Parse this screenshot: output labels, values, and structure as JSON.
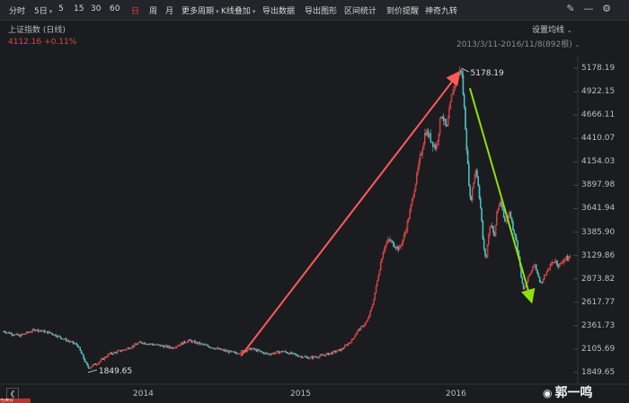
{
  "toolbar": {
    "items": [
      {
        "label": "分时",
        "active": false
      },
      {
        "label": "5日",
        "active": false,
        "dropdown": true
      },
      {
        "label": "5",
        "active": false
      },
      {
        "label": "15",
        "active": false
      },
      {
        "label": "30",
        "active": false
      },
      {
        "label": "60",
        "active": false
      },
      {
        "label": "日",
        "active": true
      },
      {
        "label": "周",
        "active": false
      },
      {
        "label": "月",
        "active": false
      },
      {
        "label": "更多周期",
        "active": false,
        "dropdown": true
      },
      {
        "label": "K线叠加",
        "active": false,
        "dropdown": true
      },
      {
        "label": "导出数据",
        "active": false
      },
      {
        "label": "导出图形",
        "active": false
      },
      {
        "label": "区间统计",
        "active": false
      },
      {
        "label": "到价提醒",
        "active": false
      },
      {
        "label": "神奇九转",
        "active": false
      }
    ],
    "icons": [
      "pen-icon",
      "minus-icon",
      "gear-icon"
    ]
  },
  "chart": {
    "title": "上证指数 (日线)",
    "last_price": "4112.16",
    "change_pct": "+0.11%",
    "ma_setting": "设置均线",
    "range": "2013/3/11-2016/11/8(892根)",
    "y_ticks": [
      "5178.19",
      "4922.15",
      "4666.11",
      "4410.07",
      "4154.03",
      "3897.98",
      "3641.94",
      "3385.90",
      "3129.86",
      "2873.82",
      "2617.77",
      "2361.73",
      "2105.69",
      "1849.65"
    ],
    "x_ticks": [
      "2014",
      "2015",
      "2016"
    ],
    "high_label": "5178.19",
    "low_label": "1849.65"
  },
  "chart_data": {
    "type": "candlestick",
    "x_range": [
      "2013-03-11",
      "2016-11-08"
    ],
    "ylim": [
      1849.65,
      5178.19
    ],
    "series": [
      {
        "values": [
          [
            0,
            2300
          ],
          [
            3,
            2250
          ],
          [
            6,
            2320
          ],
          [
            9,
            2280
          ],
          [
            12,
            2200
          ],
          [
            14,
            2150
          ],
          [
            16,
            1900
          ],
          [
            18,
            1960
          ],
          [
            20,
            2050
          ],
          [
            23,
            2100
          ],
          [
            26,
            2180
          ],
          [
            29,
            2150
          ],
          [
            32,
            2120
          ],
          [
            35,
            2200
          ],
          [
            38,
            2150
          ],
          [
            41,
            2100
          ],
          [
            44,
            2060
          ],
          [
            47,
            2110
          ],
          [
            50,
            2050
          ],
          [
            53,
            2080
          ],
          [
            56,
            2030
          ],
          [
            58,
            2010
          ],
          [
            60,
            2030
          ],
          [
            62,
            2060
          ],
          [
            64,
            2100
          ],
          [
            66,
            2200
          ],
          [
            67,
            2300
          ],
          [
            68,
            2350
          ],
          [
            69,
            2420
          ],
          [
            70,
            2600
          ],
          [
            71,
            2900
          ],
          [
            72,
            3200
          ],
          [
            73,
            3300
          ],
          [
            74,
            3250
          ],
          [
            75,
            3200
          ],
          [
            76,
            3350
          ],
          [
            77,
            3600
          ],
          [
            78,
            3900
          ],
          [
            79,
            4200
          ],
          [
            80,
            4500
          ],
          [
            81,
            4400
          ],
          [
            82,
            4300
          ],
          [
            83,
            4700
          ],
          [
            84,
            4500
          ],
          [
            85,
            4900
          ],
          [
            86,
            5100
          ],
          [
            86.8,
            5178
          ],
          [
            87,
            5000
          ],
          [
            87.5,
            4600
          ],
          [
            88,
            4100
          ],
          [
            88.5,
            3700
          ],
          [
            89,
            3900
          ],
          [
            89.5,
            4100
          ],
          [
            90,
            3900
          ],
          [
            90.5,
            3600
          ],
          [
            91,
            3200
          ],
          [
            91.5,
            3100
          ],
          [
            92,
            3400
          ],
          [
            92.5,
            3500
          ],
          [
            93,
            3300
          ],
          [
            93.5,
            3600
          ],
          [
            94,
            3700
          ],
          [
            94.5,
            3650
          ],
          [
            95,
            3500
          ],
          [
            95.5,
            3550
          ],
          [
            96,
            3600
          ],
          [
            96.5,
            3450
          ],
          [
            97,
            3350
          ],
          [
            97.5,
            3200
          ],
          [
            98,
            2950
          ],
          [
            98.5,
            2750
          ],
          [
            99,
            2800
          ],
          [
            99.5,
            2900
          ],
          [
            100,
            2950
          ],
          [
            100.5,
            3050
          ],
          [
            101,
            2980
          ],
          [
            101.5,
            2870
          ],
          [
            102,
            2820
          ],
          [
            102.5,
            2900
          ],
          [
            103,
            2950
          ],
          [
            103.5,
            3000
          ],
          [
            104,
            3050
          ],
          [
            104.5,
            3080
          ],
          [
            105,
            3040
          ],
          [
            105.5,
            3020
          ],
          [
            106,
            3080
          ],
          [
            106.5,
            3100
          ],
          [
            107,
            3090
          ],
          [
            107.5,
            3130
          ]
        ]
      }
    ],
    "x_tick_labels": [
      "2014",
      "2015",
      "2016"
    ],
    "annotations": [
      {
        "label": "5178.19",
        "x": 86.8,
        "y": 5178.19
      },
      {
        "label": "1849.65",
        "x": 16,
        "y": 1849.65
      }
    ],
    "arrows": [
      {
        "color": "#ff5a5a",
        "from": [
          45,
          2030
        ],
        "to": [
          86.2,
          5120
        ]
      },
      {
        "color": "#8ee00e",
        "from": [
          88.4,
          4960
        ],
        "to": [
          100,
          2640
        ]
      }
    ]
  },
  "watermark": {
    "text": "郭一鸣"
  },
  "bottom_badge": "可换日"
}
